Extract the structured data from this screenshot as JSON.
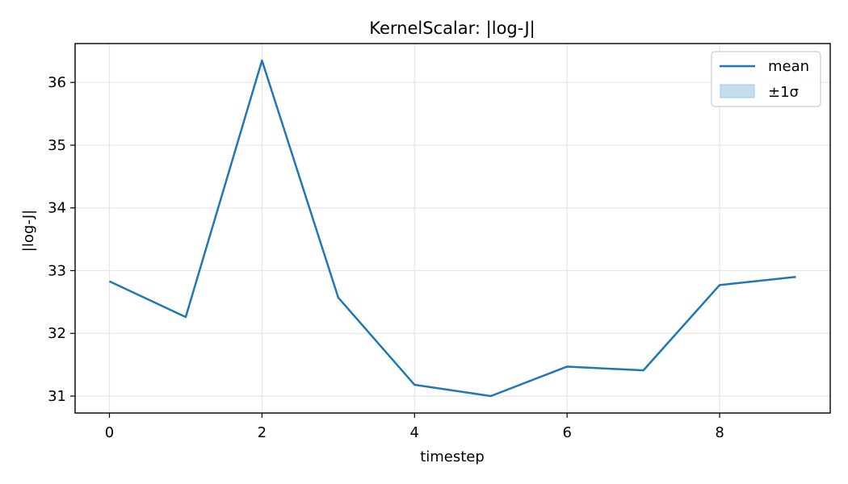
{
  "chart_data": {
    "type": "line",
    "title": "KernelScalar: |log-J|",
    "xlabel": "timestep",
    "ylabel": "|log-J|",
    "x": [
      0,
      1,
      2,
      3,
      4,
      5,
      6,
      7,
      8,
      9
    ],
    "series": [
      {
        "name": "mean",
        "values": [
          32.83,
          32.26,
          36.35,
          32.57,
          31.18,
          31.0,
          31.47,
          31.41,
          32.77,
          32.9
        ]
      }
    ],
    "band_legend_label": "±1σ",
    "xlim": [
      -0.45,
      9.45
    ],
    "ylim": [
      30.73,
      36.62
    ],
    "xticks": [
      0,
      2,
      4,
      6,
      8
    ],
    "yticks": [
      31,
      32,
      33,
      34,
      35,
      36
    ],
    "grid": true,
    "legend_position": "top-right",
    "colors": {
      "line": "#1f77b4",
      "band_fill": "#c6dcef",
      "band_edge": "#a7c6e2",
      "grid": "#e6e6e6"
    }
  }
}
